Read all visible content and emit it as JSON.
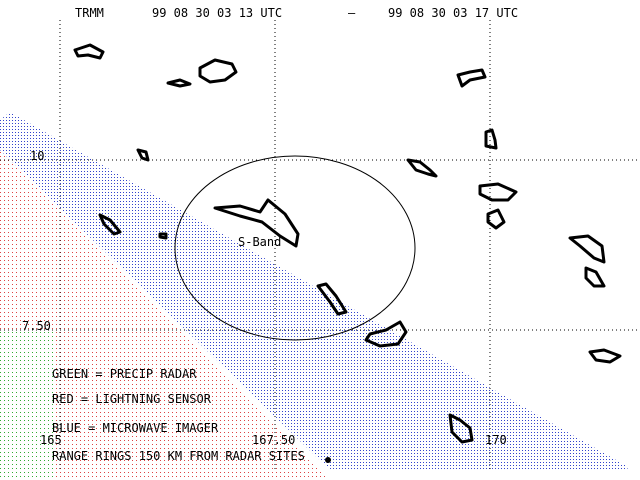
{
  "header": {
    "title": "TRMM",
    "start": "99 08 30 03 13 UTC",
    "separator": "—",
    "end": "99 08 30 03 17 UTC"
  },
  "grid": {
    "lat_labels": [
      "10",
      "7.50"
    ],
    "lon_labels": [
      "165",
      "167.50",
      "170"
    ]
  },
  "radar": {
    "label": "S-Band"
  },
  "legend": [
    "GREEN = PRECIP RADAR",
    "RED = LIGHTNING SENSOR",
    "BLUE = MICROWAVE IMAGER",
    "RANGE RINGS 150 KM FROM RADAR SITES"
  ]
}
